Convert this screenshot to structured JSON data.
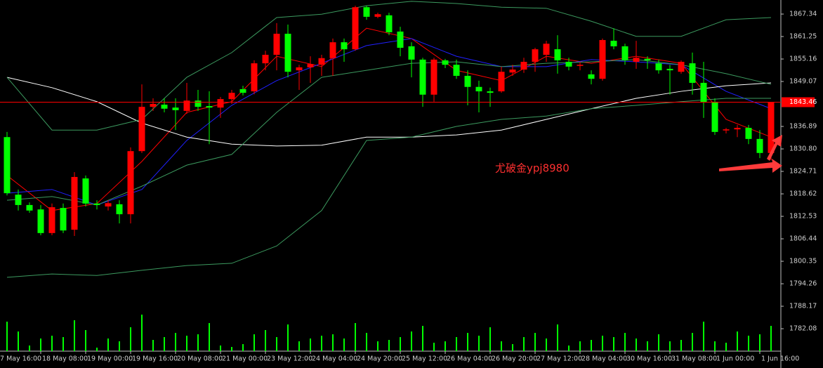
{
  "chart_data": {
    "type": "candlestick",
    "categories": [
      null,
      null,
      null,
      "18 May 08:00",
      null,
      null,
      null,
      "19 May 00:00",
      null,
      null,
      null,
      "19 May 16:00",
      null,
      null,
      null,
      "20 May 08:00",
      null,
      null,
      null,
      "21 May 00:00",
      null,
      null,
      null,
      "23 May 12:00",
      null,
      null,
      null,
      "24 May 04:00",
      null,
      null,
      null,
      "24 May 20:00",
      null,
      null,
      null,
      "25 May 12:00",
      null,
      null,
      null,
      "26 May 04:00",
      null,
      null,
      null,
      "26 May 20:00",
      null,
      null,
      null,
      "27 May 12:00",
      null,
      null,
      null,
      "28 May 04:00",
      null,
      null,
      null,
      "30 May 16:00",
      null,
      null,
      null,
      "31 May 08:00",
      null,
      null,
      null,
      "1 Jun 00:00",
      null,
      null,
      null,
      "1 Jun 16:00",
      null
    ],
    "edge_label": "7 May 16:00",
    "open": [
      1834.0,
      1818.4,
      1815.6,
      1814.4,
      1808.0,
      1814.8,
      1808.9,
      1822.8,
      1816.0,
      1815.2,
      1815.8,
      1813.1,
      1830.2,
      1842.2,
      1842.8,
      1842.0,
      1841.1,
      1843.9,
      1842.4,
      1842.0,
      1844.3,
      1847.0,
      1846.4,
      1854.0,
      1856.3,
      1862.0,
      1852.1,
      1852.9,
      1853.6,
      1855.4,
      1859.7,
      1857.8,
      1869.2,
      1866.6,
      1867.0,
      1862.6,
      1858.6,
      1855.0,
      1845.5,
      1854.8,
      1853.6,
      1850.6,
      1847.6,
      1846.4,
      1846.4,
      1851.5,
      1852.3,
      1854.4,
      1856.3,
      1857.8,
      1854.4,
      1853.3,
      1851.0,
      1849.8,
      1860.1,
      1858.6,
      1854.4,
      1855.2,
      1854.0,
      1852.5,
      1851.7,
      1854.0,
      1848.7,
      1843.4,
      1835.8,
      1836.1,
      1836.5,
      1833.5,
      1829.7
    ],
    "high": [
      1835.4,
      1819.8,
      1816.3,
      1815.6,
      1816.0,
      1816.0,
      1824.5,
      1823.6,
      1816.9,
      1816.9,
      1816.9,
      1831.2,
      1848.3,
      1844.5,
      1844.5,
      1844.5,
      1848.7,
      1846.8,
      1846.4,
      1844.9,
      1846.8,
      1847.9,
      1854.8,
      1857.4,
      1864.9,
      1864.5,
      1853.6,
      1855.9,
      1856.3,
      1860.7,
      1860.7,
      1869.6,
      1869.6,
      1867.7,
      1867.7,
      1863.9,
      1859.7,
      1855.5,
      1855.5,
      1855.2,
      1855.0,
      1852.1,
      1849.3,
      1847.4,
      1853.1,
      1853.6,
      1855.5,
      1858.2,
      1860.1,
      1861.6,
      1855.5,
      1854.4,
      1852.1,
      1860.7,
      1863.5,
      1859.3,
      1860.1,
      1855.9,
      1855.0,
      1853.6,
      1854.8,
      1856.9,
      1854.4,
      1844.5,
      1836.5,
      1837.3,
      1837.3,
      1835.9,
      1843.46
    ],
    "low": [
      1818.2,
      1814.1,
      1813.5,
      1807.4,
      1807.4,
      1808.0,
      1807.2,
      1815.2,
      1814.4,
      1814.1,
      1810.6,
      1810.6,
      1829.7,
      1841.1,
      1840.7,
      1835.9,
      1840.3,
      1841.1,
      1832.1,
      1839.2,
      1843.0,
      1845.3,
      1845.6,
      1852.1,
      1852.1,
      1850.2,
      1846.8,
      1848.7,
      1850.6,
      1850.6,
      1854.4,
      1857.4,
      1865.8,
      1866.2,
      1861.6,
      1855.9,
      1850.2,
      1842.2,
      1843.6,
      1852.7,
      1849.8,
      1842.6,
      1840.7,
      1842.2,
      1846.0,
      1850.6,
      1851.4,
      1851.7,
      1854.4,
      1851.2,
      1852.1,
      1852.1,
      1848.3,
      1849.3,
      1857.8,
      1853.6,
      1852.5,
      1852.5,
      1851.2,
      1845.5,
      1851.2,
      1845.5,
      1839.2,
      1834.6,
      1835.0,
      1834.0,
      1832.1,
      1828.3,
      1827.8
    ],
    "close": [
      1818.8,
      1815.6,
      1814.1,
      1808.0,
      1815.0,
      1808.7,
      1823.2,
      1816.0,
      1815.6,
      1816.1,
      1813.1,
      1830.2,
      1842.2,
      1843.0,
      1841.7,
      1841.3,
      1843.9,
      1842.2,
      1842.0,
      1844.3,
      1846.0,
      1846.0,
      1854.0,
      1856.3,
      1862.0,
      1851.7,
      1852.9,
      1853.8,
      1855.4,
      1859.7,
      1857.8,
      1869.2,
      1866.6,
      1867.3,
      1862.4,
      1858.2,
      1855.0,
      1845.5,
      1855.0,
      1853.6,
      1850.6,
      1847.6,
      1846.4,
      1846.0,
      1851.7,
      1852.3,
      1854.4,
      1857.8,
      1859.3,
      1854.8,
      1853.1,
      1853.6,
      1849.8,
      1860.3,
      1858.6,
      1854.8,
      1855.5,
      1854.8,
      1852.1,
      1852.1,
      1854.4,
      1848.7,
      1843.4,
      1835.4,
      1836.1,
      1836.5,
      1833.5,
      1829.7,
      1843.46
    ],
    "up_color": "#ff0000",
    "down_color": "#00ff00",
    "volume": [
      42,
      28,
      8,
      18,
      22,
      20,
      44,
      30,
      5,
      18,
      14,
      34,
      52,
      16,
      20,
      26,
      22,
      24,
      40,
      8,
      6,
      10,
      24,
      30,
      20,
      38,
      14,
      18,
      22,
      24,
      18,
      40,
      26,
      14,
      16,
      20,
      28,
      36,
      12,
      14,
      20,
      26,
      22,
      34,
      14,
      10,
      20,
      26,
      18,
      38,
      8,
      14,
      16,
      22,
      20,
      26,
      18,
      14,
      24,
      14,
      16,
      26,
      42,
      14,
      12,
      28,
      22,
      24,
      36
    ],
    "volume_color": "#00ff00",
    "vlim": [
      0,
      100
    ],
    "lines": [
      {
        "color": "#ff0000",
        "x": [
          0,
          4,
          8,
          12,
          16,
          20,
          24,
          28,
          32,
          36,
          40,
          44,
          48,
          52,
          56,
          60,
          64,
          68
        ],
        "values": [
          1823.6,
          1814.1,
          1816.0,
          1827.4,
          1840.7,
          1843.6,
          1855.9,
          1853.1,
          1863.5,
          1860.7,
          1852.1,
          1849.3,
          1855.9,
          1854.0,
          1855.9,
          1854.0,
          1838.8,
          1834.0
        ]
      },
      {
        "color": "#2020ff",
        "x": [
          0,
          4,
          8,
          12,
          16,
          20,
          24,
          28,
          32,
          36,
          40,
          44,
          48,
          52,
          56,
          60,
          64,
          68
        ],
        "values": [
          1818.8,
          1819.8,
          1815.6,
          1819.8,
          1833.1,
          1842.6,
          1849.3,
          1854.0,
          1858.8,
          1860.7,
          1855.9,
          1853.1,
          1853.1,
          1855.0,
          1854.4,
          1853.6,
          1846.4,
          1841.7
        ]
      },
      {
        "color": "#ffffff",
        "x": [
          0,
          4,
          8,
          12,
          16,
          20,
          24,
          28,
          32,
          36,
          40,
          44,
          48,
          52,
          56,
          60,
          64,
          68
        ],
        "values": [
          1850.2,
          1847.4,
          1843.6,
          1837.8,
          1834.0,
          1832.1,
          1831.6,
          1831.8,
          1834.0,
          1834.0,
          1834.6,
          1835.9,
          1838.8,
          1841.7,
          1844.5,
          1846.4,
          1847.9,
          1848.7
        ]
      },
      {
        "color": "#3c9a5f",
        "x": [
          0,
          4,
          8,
          12,
          16,
          20,
          24,
          28,
          32,
          36,
          40,
          44,
          48,
          52,
          56,
          60,
          64,
          68
        ],
        "values": [
          1850.2,
          1835.9,
          1835.9,
          1838.8,
          1850.2,
          1856.9,
          1866.4,
          1867.3,
          1869.6,
          1870.8,
          1870.2,
          1869.2,
          1868.9,
          1865.4,
          1861.3,
          1861.3,
          1865.8,
          1866.4
        ]
      },
      {
        "color": "#3c9a5f",
        "x": [
          0,
          4,
          8,
          12,
          16,
          20,
          24,
          28,
          32,
          36,
          40,
          44,
          48,
          52,
          56,
          60,
          64,
          68
        ],
        "values": [
          1816.9,
          1817.9,
          1815.6,
          1820.7,
          1826.4,
          1829.3,
          1840.7,
          1850.2,
          1852.1,
          1854.0,
          1854.4,
          1853.1,
          1854.0,
          1854.4,
          1855.0,
          1853.6,
          1851.2,
          1848.3
        ]
      },
      {
        "color": "#3c9a5f",
        "x": [
          0,
          4,
          8,
          12,
          16,
          20,
          24,
          28,
          32,
          36,
          40,
          44,
          48,
          52,
          56,
          60,
          64,
          68
        ],
        "values": [
          1796.0,
          1796.9,
          1796.5,
          1797.9,
          1799.2,
          1799.8,
          1804.5,
          1814.1,
          1833.1,
          1834.0,
          1836.9,
          1838.8,
          1839.7,
          1841.7,
          1842.6,
          1843.6,
          1844.5,
          1844.5
        ]
      }
    ],
    "ylim": [
      1776.0,
      1871.15
    ],
    "yticks": [
      1867.34,
      1861.25,
      1855.16,
      1849.07,
      1836.89,
      {
        "value": 1830.8,
        "label": "1830.80"
      },
      1824.71,
      1818.62,
      1812.53,
      1806.44,
      1800.35,
      1794.26,
      1788.17,
      1782.08
    ],
    "current_price": 1843.46,
    "current_price_color": "#ff0000",
    "annotation": "尤破金ypj8980"
  }
}
